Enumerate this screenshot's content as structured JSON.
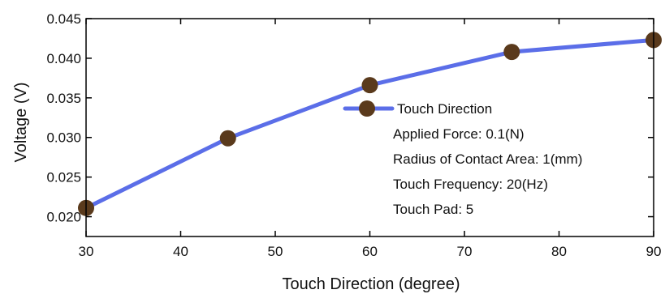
{
  "chart_data": {
    "type": "line",
    "x": [
      30,
      45,
      60,
      75,
      90
    ],
    "series": [
      {
        "name": "Touch Direction",
        "values": [
          0.0211,
          0.0299,
          0.0366,
          0.0408,
          0.0423
        ]
      }
    ],
    "xlabel": "Touch Direction (degree)",
    "ylabel": "Voltage (V)",
    "xlim": [
      30,
      90
    ],
    "ylim": [
      0.0175,
      0.045
    ],
    "xticks": [
      30,
      40,
      50,
      60,
      70,
      80,
      90
    ],
    "xtick_labels": [
      "30",
      "40",
      "50",
      "60",
      "70",
      "80",
      "90"
    ],
    "yticks": [
      0.02,
      0.025,
      0.03,
      0.035,
      0.04,
      0.045
    ],
    "ytick_labels": [
      "0.020",
      "0.025",
      "0.030",
      "0.035",
      "0.040",
      "0.045"
    ],
    "legend": {
      "position": "center-right",
      "entry": "Touch Direction",
      "notes": [
        "Applied Force: 0.1(N)",
        "Radius of Contact Area: 1(mm)",
        "Touch Frequency: 20(Hz)",
        "Touch Pad: 5"
      ]
    },
    "grid": false,
    "colors": {
      "line": "#5b6ee8",
      "marker": "#5a3a1c",
      "axis": "#000000"
    }
  }
}
